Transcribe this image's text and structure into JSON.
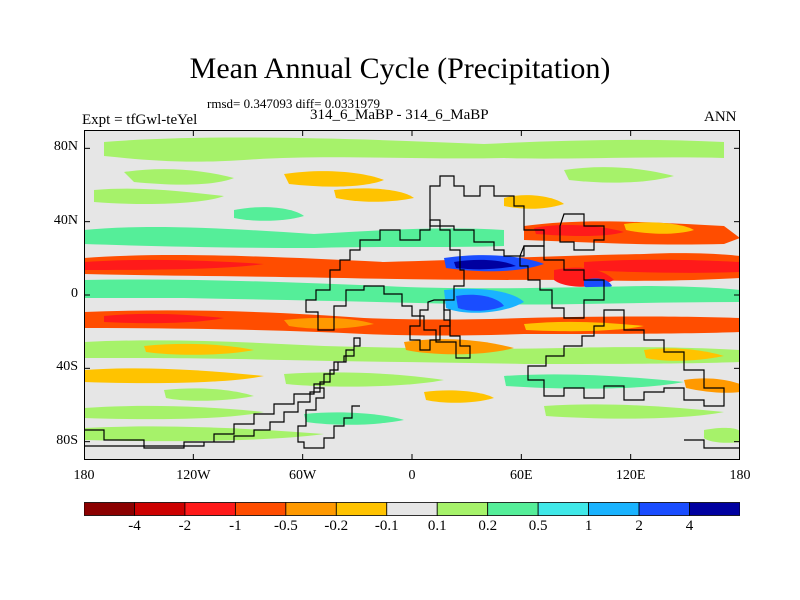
{
  "title": "Mean Annual Cycle (Precipitation)",
  "stats": "rmsd= 0.347093 diff= 0.0331979",
  "left_label": "Expt = tfGwl-teYel",
  "center_label": "314_6_MaBP - 314_6_MaBP",
  "right_label": "ANN",
  "y_ticks": [
    {
      "label": "80N",
      "lat": 80
    },
    {
      "label": "40N",
      "lat": 40
    },
    {
      "label": "0",
      "lat": 0
    },
    {
      "label": "40S",
      "lat": -40
    },
    {
      "label": "80S",
      "lat": -80
    }
  ],
  "x_ticks": [
    {
      "label": "180",
      "lon": -180
    },
    {
      "label": "120W",
      "lon": -120
    },
    {
      "label": "60W",
      "lon": -60
    },
    {
      "label": "0",
      "lon": 0
    },
    {
      "label": "60E",
      "lon": 60
    },
    {
      "label": "120E",
      "lon": 120
    },
    {
      "label": "180",
      "lon": 180
    }
  ],
  "colorbar": {
    "colors": [
      "#8b0000",
      "#cc0000",
      "#ff1a1a",
      "#ff4d00",
      "#ff9900",
      "#ffc300",
      "#e6e6e6",
      "#a6f26a",
      "#55ee99",
      "#40e8e8",
      "#1ab3ff",
      "#1a4dff",
      "#0000a0"
    ],
    "labels": [
      "-4",
      "-2",
      "-1",
      "-0.5",
      "-0.2",
      "-0.1",
      "0.1",
      "0.2",
      "0.5",
      "1",
      "2",
      "4"
    ]
  },
  "colors": {
    "land_line": "#000000",
    "background": "#e6e6e6"
  }
}
